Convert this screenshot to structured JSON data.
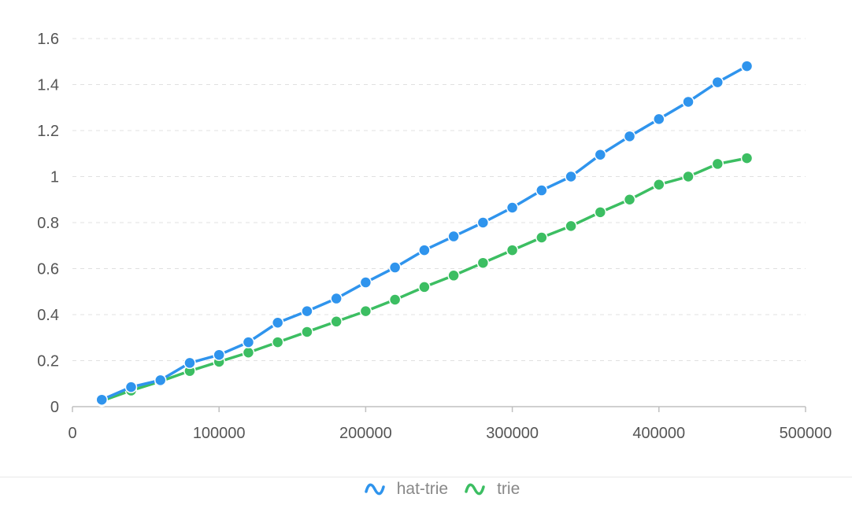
{
  "chart_data": {
    "type": "line",
    "x": [
      20000,
      40000,
      60000,
      80000,
      100000,
      120000,
      140000,
      160000,
      180000,
      200000,
      220000,
      240000,
      260000,
      280000,
      300000,
      320000,
      340000,
      360000,
      380000,
      400000,
      420000,
      440000,
      460000
    ],
    "series": [
      {
        "name": "hat-trie",
        "color": "#2f94ed",
        "values": [
          0.03,
          0.085,
          0.115,
          0.19,
          0.225,
          0.28,
          0.365,
          0.415,
          0.47,
          0.54,
          0.605,
          0.68,
          0.74,
          0.8,
          0.865,
          0.94,
          1.0,
          1.095,
          1.175,
          1.25,
          1.325,
          1.41,
          1.48
        ]
      },
      {
        "name": "trie",
        "color": "#3cbe62",
        "values": [
          0.025,
          0.07,
          0.11,
          0.155,
          0.195,
          0.235,
          0.28,
          0.325,
          0.37,
          0.415,
          0.465,
          0.52,
          0.57,
          0.625,
          0.68,
          0.735,
          0.785,
          0.845,
          0.9,
          0.965,
          1.0,
          1.055,
          1.08
        ]
      }
    ],
    "xlim": [
      0,
      500000
    ],
    "ylim": [
      0,
      1.6
    ],
    "x_ticks": [
      0,
      100000,
      200000,
      300000,
      400000,
      500000
    ],
    "x_tick_labels": [
      "0",
      "100000",
      "200000",
      "300000",
      "400000",
      "500000"
    ],
    "y_ticks": [
      0,
      0.2,
      0.4,
      0.6,
      0.8,
      1,
      1.2,
      1.4,
      1.6
    ],
    "y_tick_labels": [
      "0",
      "0.2",
      "0.4",
      "0.6",
      "0.8",
      "1",
      "1.2",
      "1.4",
      "1.6"
    ],
    "title": "",
    "xlabel": "",
    "ylabel": "",
    "grid": "horizontal dashed",
    "legend_position": "bottom-center"
  },
  "legend": {
    "items": [
      {
        "label": "hat-trie",
        "icon": "wave-icon",
        "color": "#2f94ed"
      },
      {
        "label": "trie",
        "icon": "wave-icon",
        "color": "#3cbe62"
      }
    ]
  }
}
